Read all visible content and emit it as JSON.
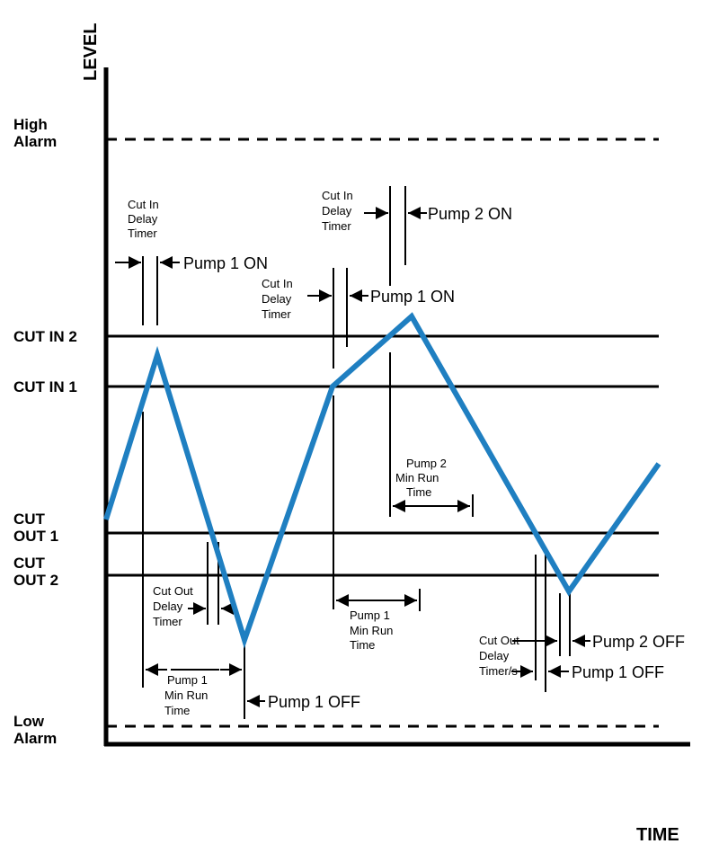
{
  "axes": {
    "y_label": "LEVEL",
    "x_label": "TIME"
  },
  "levels": {
    "high_alarm": [
      "High",
      "Alarm"
    ],
    "cut_in_2": "CUT IN 2",
    "cut_in_1": "CUT IN 1",
    "cut_out_1": [
      "CUT",
      "OUT 1"
    ],
    "cut_out_2": [
      "CUT",
      "OUT 2"
    ],
    "low_alarm": [
      "Low",
      "Alarm"
    ]
  },
  "annotations": {
    "cut_in_delay_a": [
      "Cut In",
      "Delay",
      "Timer"
    ],
    "pump1_on_a": "Pump 1 ON",
    "cut_in_delay_b": [
      "Cut In",
      "Delay",
      "Timer"
    ],
    "pump1_on_b": "Pump 1 ON",
    "cut_in_delay_c": [
      "Cut In",
      "Delay",
      "Timer"
    ],
    "pump2_on": "Pump 2 ON",
    "pump2_min_run": [
      "Pump 2",
      "Min Run",
      "Time"
    ],
    "cut_out_delay_a": [
      "Cut Out",
      "Delay",
      "Timer"
    ],
    "pump1_min_run_a": [
      "Pump 1",
      "Min Run",
      "Time"
    ],
    "pump1_off_a": "Pump 1 OFF",
    "pump1_min_run_b": [
      "Pump 1",
      "Min Run",
      "Time"
    ],
    "cut_out_delay_b": [
      "Cut Out",
      "Delay",
      "Timer/s"
    ],
    "pump2_off": "Pump 2 OFF",
    "pump1_off_b": "Pump 1 OFF"
  },
  "colors": {
    "level_trace": "#1f7fc1",
    "lines": "#000000"
  }
}
